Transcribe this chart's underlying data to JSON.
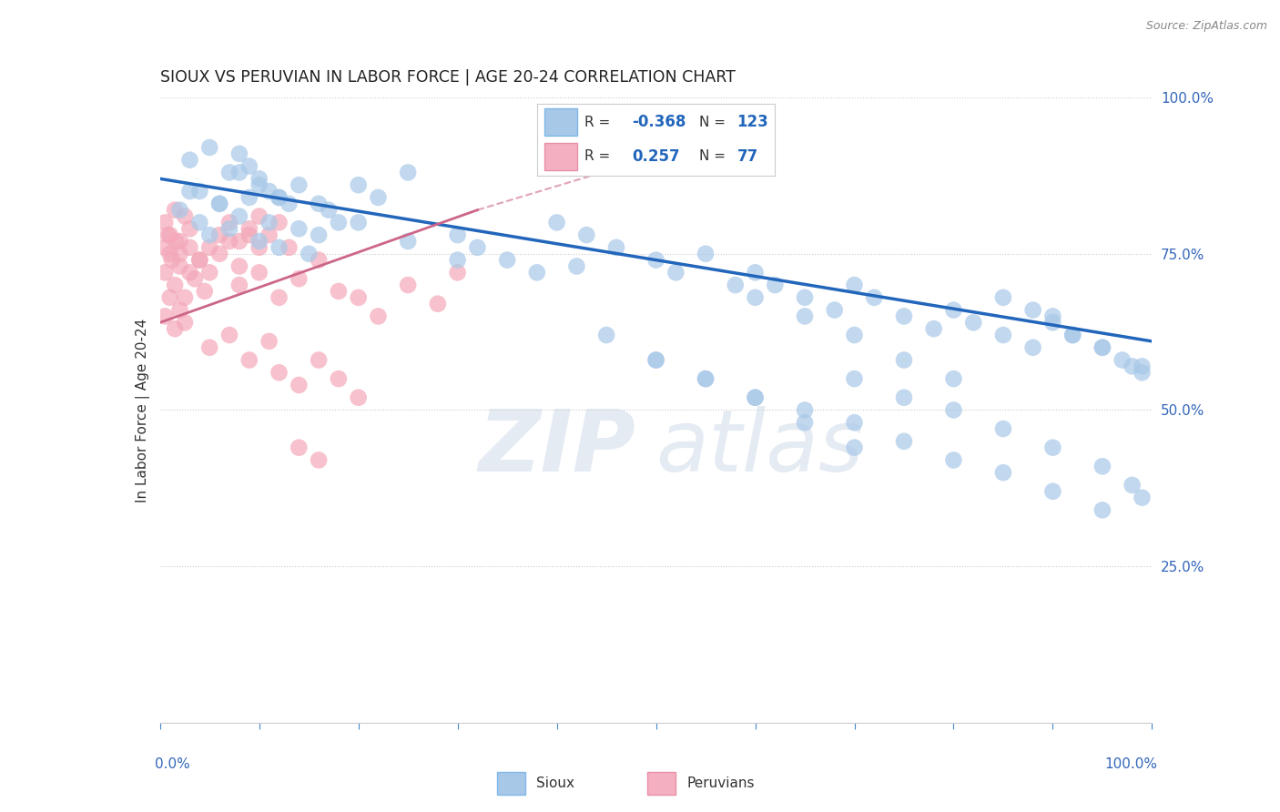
{
  "title": "SIOUX VS PERUVIAN IN LABOR FORCE | AGE 20-24 CORRELATION CHART",
  "source_text": "Source: ZipAtlas.com",
  "ylabel": "In Labor Force | Age 20-24",
  "right_yticks": [
    0.25,
    0.5,
    0.75,
    1.0
  ],
  "right_yticklabels": [
    "25.0%",
    "50.0%",
    "75.0%",
    "100.0%"
  ],
  "blue_R": -0.368,
  "blue_N": 123,
  "pink_R": 0.257,
  "pink_N": 77,
  "blue_color": "#a8c8e8",
  "pink_color": "#f4a8b8",
  "blue_trend_color": "#2266bb",
  "pink_trend_color": "#cc6688",
  "bg_color": "#ffffff",
  "watermark_color": "#ccd8e8",
  "grid_color": "#cccccc",
  "blue_scatter_x": [
    0.02,
    0.03,
    0.04,
    0.05,
    0.06,
    0.07,
    0.08,
    0.09,
    0.1,
    0.11,
    0.12,
    0.13,
    0.14,
    0.15,
    0.16,
    0.17,
    0.18,
    0.2,
    0.22,
    0.25,
    0.03,
    0.05,
    0.07,
    0.08,
    0.09,
    0.1,
    0.11,
    0.12,
    0.14,
    0.16,
    0.04,
    0.06,
    0.08,
    0.1,
    0.12,
    0.3,
    0.32,
    0.35,
    0.38,
    0.42,
    0.4,
    0.43,
    0.46,
    0.5,
    0.52,
    0.55,
    0.58,
    0.6,
    0.62,
    0.65,
    0.68,
    0.7,
    0.72,
    0.75,
    0.78,
    0.8,
    0.82,
    0.85,
    0.88,
    0.9,
    0.92,
    0.95,
    0.97,
    0.99,
    0.5,
    0.55,
    0.6,
    0.65,
    0.7,
    0.75,
    0.8,
    0.85,
    0.9,
    0.95,
    0.45,
    0.5,
    0.55,
    0.6,
    0.65,
    0.7,
    0.6,
    0.65,
    0.7,
    0.75,
    0.8,
    0.7,
    0.75,
    0.8,
    0.85,
    0.9,
    0.95,
    0.98,
    0.99,
    0.85,
    0.88,
    0.9,
    0.92,
    0.95,
    0.98,
    0.99,
    0.2,
    0.25,
    0.3
  ],
  "blue_scatter_y": [
    0.82,
    0.85,
    0.8,
    0.78,
    0.83,
    0.79,
    0.81,
    0.84,
    0.77,
    0.8,
    0.76,
    0.83,
    0.79,
    0.75,
    0.78,
    0.82,
    0.8,
    0.86,
    0.84,
    0.88,
    0.9,
    0.92,
    0.88,
    0.91,
    0.89,
    0.87,
    0.85,
    0.84,
    0.86,
    0.83,
    0.85,
    0.83,
    0.88,
    0.86,
    0.84,
    0.78,
    0.76,
    0.74,
    0.72,
    0.73,
    0.8,
    0.78,
    0.76,
    0.74,
    0.72,
    0.75,
    0.7,
    0.72,
    0.7,
    0.68,
    0.66,
    0.7,
    0.68,
    0.65,
    0.63,
    0.66,
    0.64,
    0.62,
    0.6,
    0.65,
    0.62,
    0.6,
    0.58,
    0.57,
    0.58,
    0.55,
    0.52,
    0.5,
    0.48,
    0.45,
    0.42,
    0.4,
    0.37,
    0.34,
    0.62,
    0.58,
    0.55,
    0.52,
    0.48,
    0.44,
    0.68,
    0.65,
    0.62,
    0.58,
    0.55,
    0.55,
    0.52,
    0.5,
    0.47,
    0.44,
    0.41,
    0.38,
    0.36,
    0.68,
    0.66,
    0.64,
    0.62,
    0.6,
    0.57,
    0.56,
    0.8,
    0.77,
    0.74
  ],
  "pink_scatter_x": [
    0.005,
    0.01,
    0.015,
    0.02,
    0.025,
    0.03,
    0.035,
    0.04,
    0.045,
    0.05,
    0.005,
    0.01,
    0.015,
    0.02,
    0.025,
    0.03,
    0.005,
    0.01,
    0.015,
    0.02,
    0.025,
    0.005,
    0.008,
    0.012,
    0.016,
    0.02,
    0.03,
    0.04,
    0.05,
    0.06,
    0.07,
    0.08,
    0.09,
    0.1,
    0.06,
    0.07,
    0.08,
    0.09,
    0.1,
    0.11,
    0.12,
    0.13,
    0.08,
    0.1,
    0.12,
    0.14,
    0.16,
    0.18,
    0.05,
    0.07,
    0.09,
    0.11,
    0.12,
    0.14,
    0.16,
    0.2,
    0.22,
    0.25,
    0.28,
    0.3,
    0.18,
    0.2,
    0.14,
    0.16
  ],
  "pink_scatter_y": [
    0.72,
    0.75,
    0.7,
    0.73,
    0.68,
    0.76,
    0.71,
    0.74,
    0.69,
    0.72,
    0.8,
    0.78,
    0.82,
    0.77,
    0.81,
    0.79,
    0.65,
    0.68,
    0.63,
    0.66,
    0.64,
    0.76,
    0.78,
    0.74,
    0.77,
    0.75,
    0.72,
    0.74,
    0.76,
    0.75,
    0.77,
    0.73,
    0.78,
    0.76,
    0.78,
    0.8,
    0.77,
    0.79,
    0.81,
    0.78,
    0.8,
    0.76,
    0.7,
    0.72,
    0.68,
    0.71,
    0.74,
    0.69,
    0.6,
    0.62,
    0.58,
    0.61,
    0.56,
    0.54,
    0.58,
    0.68,
    0.65,
    0.7,
    0.67,
    0.72,
    0.55,
    0.52,
    0.44,
    0.42
  ],
  "blue_trend_x0": 0.0,
  "blue_trend_x1": 1.0,
  "blue_trend_y0": 0.87,
  "blue_trend_y1": 0.61,
  "pink_trend_x0": 0.0,
  "pink_trend_x1": 0.32,
  "pink_trend_y0": 0.64,
  "pink_trend_y1": 0.82,
  "xmin": 0.0,
  "xmax": 1.0,
  "ymin": 0.0,
  "ymax": 1.0
}
